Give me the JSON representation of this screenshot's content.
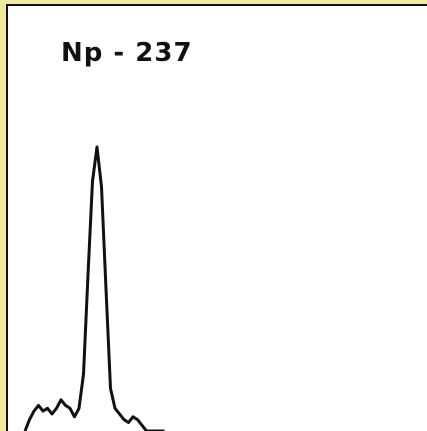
{
  "chart_data": {
    "type": "line",
    "title": "Np - 237",
    "xlabel": "",
    "ylabel": "",
    "ylim": [
      0,
      1
    ],
    "grid": false,
    "legend": "none",
    "line_color": "#111111",
    "series": [
      {
        "x": [
          0,
          1,
          2,
          3,
          4,
          5,
          6,
          7,
          8,
          9,
          10,
          11,
          12,
          13,
          14,
          15,
          16,
          17,
          18,
          19,
          20,
          21,
          22,
          23,
          24,
          25,
          26,
          27,
          28,
          29,
          30,
          31
        ],
        "values": [
          0.0,
          0.04,
          0.07,
          0.09,
          0.07,
          0.08,
          0.06,
          0.08,
          0.11,
          0.09,
          0.08,
          0.05,
          0.08,
          0.2,
          0.55,
          0.88,
          1.0,
          0.86,
          0.5,
          0.15,
          0.08,
          0.06,
          0.04,
          0.03,
          0.05,
          0.04,
          0.02,
          0.0,
          0.0,
          0.0,
          0.0,
          0.0
        ]
      }
    ]
  },
  "frame": {
    "border_color": "#eee8a0",
    "background": "#ffffe9"
  }
}
